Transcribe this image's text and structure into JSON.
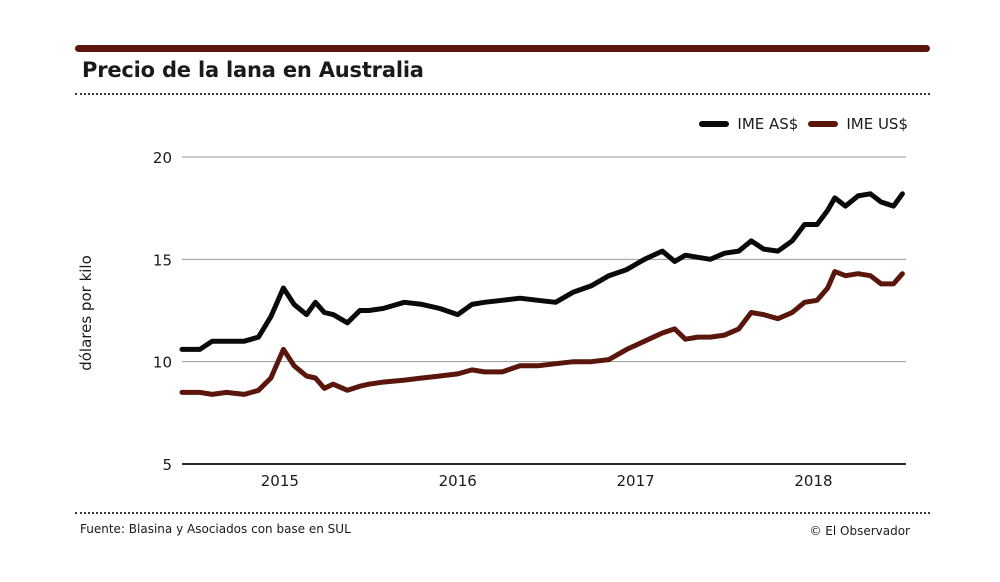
{
  "header": {
    "title": "Precio de la lana en Australia"
  },
  "legend": [
    {
      "label": "IME AS$",
      "color": "#0a0a0a"
    },
    {
      "label": "IME US$",
      "color": "#5a160c"
    }
  ],
  "footer": {
    "source": "Fuente: Blasina y Asociados con base en SUL",
    "credit": "© El Observador"
  },
  "chart_data": {
    "type": "line",
    "title": "Precio de la lana en Australia",
    "xlabel": "",
    "ylabel": "dólares por kilo",
    "ylim": [
      5,
      20
    ],
    "yticks": [
      5,
      10,
      15,
      20
    ],
    "xlim": [
      2014.45,
      2018.52
    ],
    "xticks": [
      {
        "value": 2015.0,
        "label": "2015"
      },
      {
        "value": 2016.0,
        "label": "2016"
      },
      {
        "value": 2017.0,
        "label": "2017"
      },
      {
        "value": 2018.0,
        "label": "2018"
      }
    ],
    "grid": "horizontal",
    "legend_position": "top-right",
    "x": [
      2014.45,
      2014.55,
      2014.62,
      2014.7,
      2014.8,
      2014.88,
      2014.95,
      2015.02,
      2015.08,
      2015.15,
      2015.2,
      2015.25,
      2015.3,
      2015.38,
      2015.45,
      2015.5,
      2015.58,
      2015.7,
      2015.8,
      2015.9,
      2016.0,
      2016.08,
      2016.15,
      2016.25,
      2016.35,
      2016.45,
      2016.55,
      2016.65,
      2016.75,
      2016.85,
      2016.95,
      2017.05,
      2017.15,
      2017.22,
      2017.28,
      2017.35,
      2017.42,
      2017.5,
      2017.58,
      2017.65,
      2017.72,
      2017.8,
      2017.88,
      2017.95,
      2018.02,
      2018.08,
      2018.12,
      2018.18,
      2018.25,
      2018.32,
      2018.38,
      2018.45,
      2018.5
    ],
    "series": [
      {
        "name": "IME AS$",
        "color": "#0a0a0a",
        "values": [
          10.6,
          10.6,
          11.0,
          11.0,
          11.0,
          11.2,
          12.2,
          13.6,
          12.8,
          12.3,
          12.9,
          12.4,
          12.3,
          11.9,
          12.5,
          12.5,
          12.6,
          12.9,
          12.8,
          12.6,
          12.3,
          12.8,
          12.9,
          13.0,
          13.1,
          13.0,
          12.9,
          13.4,
          13.7,
          14.2,
          14.5,
          15.0,
          15.4,
          14.9,
          15.2,
          15.1,
          15.0,
          15.3,
          15.4,
          15.9,
          15.5,
          15.4,
          15.9,
          16.7,
          16.7,
          17.4,
          18.0,
          17.6,
          18.1,
          18.2,
          17.8,
          17.6,
          18.2
        ]
      },
      {
        "name": "IME US$",
        "color": "#5a160c",
        "values": [
          8.5,
          8.5,
          8.4,
          8.5,
          8.4,
          8.6,
          9.2,
          10.6,
          9.8,
          9.3,
          9.2,
          8.7,
          8.9,
          8.6,
          8.8,
          8.9,
          9.0,
          9.1,
          9.2,
          9.3,
          9.4,
          9.6,
          9.5,
          9.5,
          9.8,
          9.8,
          9.9,
          10.0,
          10.0,
          10.1,
          10.6,
          11.0,
          11.4,
          11.6,
          11.1,
          11.2,
          11.2,
          11.3,
          11.6,
          12.4,
          12.3,
          12.1,
          12.4,
          12.9,
          13.0,
          13.6,
          14.4,
          14.2,
          14.3,
          14.2,
          13.8,
          13.8,
          14.3
        ]
      }
    ]
  }
}
